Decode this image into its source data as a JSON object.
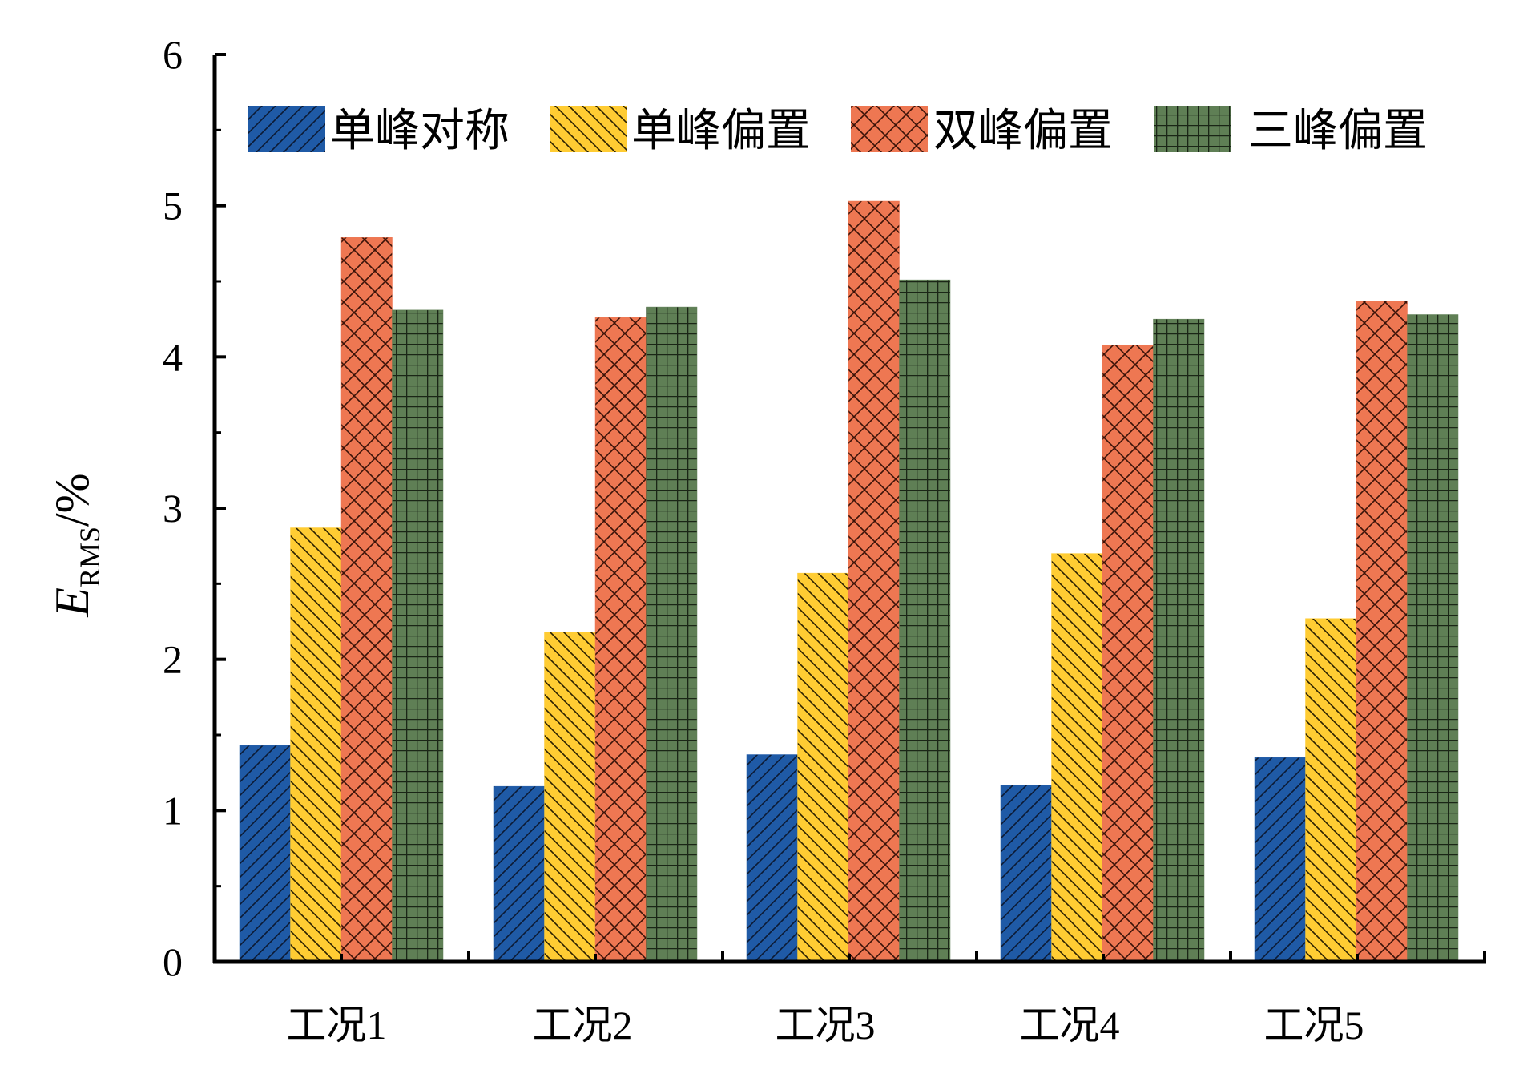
{
  "chart_data": {
    "type": "bar",
    "categories": [
      "工况1",
      "工况2",
      "工况3",
      "工况4",
      "工况5"
    ],
    "series": [
      {
        "name": "单峰对称",
        "values": [
          1.43,
          1.16,
          1.37,
          1.17,
          1.35
        ],
        "color": "#1f5aa6",
        "pattern": "diagonal-up"
      },
      {
        "name": "单峰偏置",
        "values": [
          2.87,
          2.18,
          2.57,
          2.7,
          2.27
        ],
        "color": "#ffcc33",
        "pattern": "diagonal-down"
      },
      {
        "name": "双峰偏置",
        "values": [
          4.79,
          4.26,
          5.03,
          4.08,
          4.37
        ],
        "color": "#ee7752",
        "pattern": "crosshatch-diagonal"
      },
      {
        "name": "三峰偏置",
        "values": [
          4.31,
          4.33,
          4.51,
          4.25,
          4.28
        ],
        "color": "#5f7f55",
        "pattern": "grid"
      }
    ],
    "ylabel": {
      "main": "E",
      "sub": "RMS",
      "unit": "/%"
    },
    "ylim": [
      0,
      6
    ],
    "yticks": [
      "0",
      "1",
      "2",
      "3",
      "4",
      "5",
      "6"
    ],
    "grid": false,
    "legend_position": "top"
  }
}
